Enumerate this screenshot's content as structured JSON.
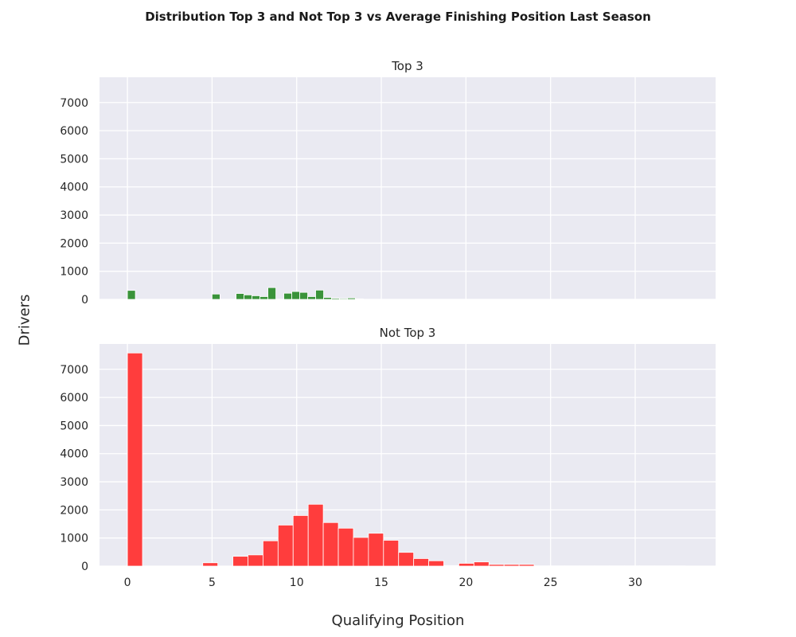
{
  "figure": {
    "title": "Distribution Top 3 and Not Top 3 vs Average Finishing Position Last Season",
    "xlabel": "Qualifying Position",
    "ylabel": "Drivers"
  },
  "colors": {
    "background": "#eaeaf2",
    "grid": "#ffffff",
    "top3": "#3a933a",
    "not_top3": "#ff3d3d",
    "text": "#262626"
  },
  "chart_data": [
    {
      "type": "bar",
      "title": "Top 3",
      "xlim": [
        -1.65,
        34.75
      ],
      "ylim": [
        0,
        7900
      ],
      "xticks": [
        0,
        5,
        10,
        15,
        20,
        25,
        30
      ],
      "yticks": [
        0,
        1000,
        2000,
        3000,
        4000,
        5000,
        6000,
        7000
      ],
      "grid": true,
      "bin_width": 0.47,
      "bins": [
        {
          "x": 0.0,
          "value": 320
        },
        {
          "x": 5.0,
          "value": 190
        },
        {
          "x": 6.42,
          "value": 210
        },
        {
          "x": 6.89,
          "value": 160
        },
        {
          "x": 7.36,
          "value": 130
        },
        {
          "x": 7.83,
          "value": 100
        },
        {
          "x": 8.3,
          "value": 420
        },
        {
          "x": 9.24,
          "value": 220
        },
        {
          "x": 9.71,
          "value": 280
        },
        {
          "x": 10.18,
          "value": 250
        },
        {
          "x": 10.65,
          "value": 100
        },
        {
          "x": 11.12,
          "value": 330
        },
        {
          "x": 11.59,
          "value": 70
        },
        {
          "x": 12.06,
          "value": 40
        },
        {
          "x": 12.53,
          "value": 30
        },
        {
          "x": 13.0,
          "value": 50
        },
        {
          "x": 13.47,
          "value": 20
        }
      ]
    },
    {
      "type": "bar",
      "title": "Not Top 3",
      "xlim": [
        -1.65,
        34.75
      ],
      "ylim": [
        0,
        7900
      ],
      "xticks": [
        0,
        5,
        10,
        15,
        20,
        25,
        30
      ],
      "yticks": [
        0,
        1000,
        2000,
        3000,
        4000,
        5000,
        6000,
        7000
      ],
      "grid": true,
      "bin_width": 0.89,
      "bins": [
        {
          "x": 0.0,
          "value": 7580
        },
        {
          "x": 4.45,
          "value": 120
        },
        {
          "x": 6.23,
          "value": 350
        },
        {
          "x": 7.12,
          "value": 400
        },
        {
          "x": 8.01,
          "value": 900
        },
        {
          "x": 8.9,
          "value": 1460
        },
        {
          "x": 9.79,
          "value": 1800
        },
        {
          "x": 10.68,
          "value": 2200
        },
        {
          "x": 11.57,
          "value": 1550
        },
        {
          "x": 12.46,
          "value": 1350
        },
        {
          "x": 13.35,
          "value": 1020
        },
        {
          "x": 14.24,
          "value": 1170
        },
        {
          "x": 15.13,
          "value": 920
        },
        {
          "x": 16.02,
          "value": 490
        },
        {
          "x": 16.91,
          "value": 270
        },
        {
          "x": 17.8,
          "value": 190
        },
        {
          "x": 18.69,
          "value": 20
        },
        {
          "x": 19.58,
          "value": 100
        },
        {
          "x": 20.47,
          "value": 150
        },
        {
          "x": 21.36,
          "value": 60
        },
        {
          "x": 22.25,
          "value": 60
        },
        {
          "x": 23.14,
          "value": 60
        },
        {
          "x": 24.03,
          "value": 10
        },
        {
          "x": 24.92,
          "value": 10
        },
        {
          "x": 25.81,
          "value": 10
        },
        {
          "x": 26.7,
          "value": 10
        },
        {
          "x": 27.59,
          "value": 10
        },
        {
          "x": 28.48,
          "value": 10
        },
        {
          "x": 29.37,
          "value": 10
        },
        {
          "x": 30.26,
          "value": 10
        },
        {
          "x": 31.15,
          "value": 10
        },
        {
          "x": 32.04,
          "value": 10
        }
      ]
    }
  ]
}
